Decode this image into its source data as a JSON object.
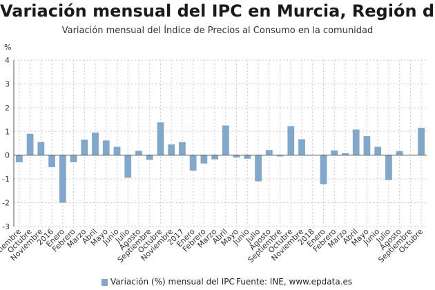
{
  "colors": {
    "bar": "#7fa8cc",
    "grid": "#c8c8c8",
    "axis": "#555555",
    "text": "#333333"
  },
  "legend": {
    "series_label": "Variación (%) mensual del IPC",
    "source": "Fuente: INE, www.epdata.es"
  },
  "chart_data": {
    "type": "bar",
    "title": "Variación mensual del IPC en Murcia, Región de",
    "subtitle": "Variación mensual del Índice de Precios al Consumo en la comunidad",
    "ylabel": "%",
    "xlabel": "",
    "ylim": [
      -3,
      4
    ],
    "yticks": [
      -3,
      -2,
      -1,
      0,
      1,
      2,
      3,
      4
    ],
    "grid": true,
    "legend_position": "bottom",
    "categories": [
      "Septiembre",
      "Octubre",
      "Noviembre",
      "2016",
      "Enero",
      "Febrero",
      "Marzo",
      "Abril",
      "Mayo",
      "Junio",
      "Julio",
      "Agosto",
      "Septiembre",
      "Octubre",
      "Noviembre",
      "2017",
      "Enero",
      "Febrero",
      "Marzo",
      "Abril",
      "Mayo",
      "Junio",
      "Julio",
      "Agosto",
      "Septiembre",
      "Octubre",
      "Noviembre",
      "2018",
      "Enero",
      "Febrero",
      "Marzo",
      "Abril",
      "Mayo",
      "Junio",
      "Julio",
      "Agosto",
      "Septiembre",
      "Octubre"
    ],
    "series": [
      {
        "name": "Variación (%) mensual del IPC",
        "values": [
          -0.3,
          0.9,
          0.55,
          -0.5,
          -2.0,
          -0.3,
          0.65,
          0.95,
          0.62,
          0.35,
          -0.95,
          0.18,
          -0.2,
          1.38,
          0.45,
          0.55,
          -0.65,
          -0.35,
          -0.18,
          1.25,
          -0.1,
          -0.15,
          -1.1,
          0.22,
          -0.05,
          1.22,
          0.67,
          0.0,
          -1.22,
          0.2,
          0.08,
          1.08,
          0.8,
          0.35,
          -1.05,
          0.17,
          0.0,
          1.15
        ]
      }
    ]
  }
}
